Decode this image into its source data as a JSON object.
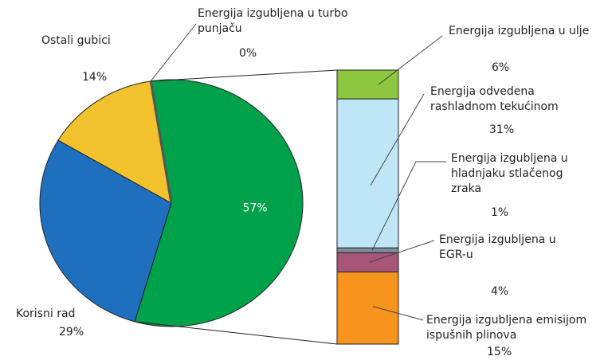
{
  "chart_data": {
    "type": "pie-of-bar",
    "pie": {
      "categories": [
        null,
        "Korisni rad",
        "Ostali gubici",
        "Energija izgubljena u turbo punjaču"
      ],
      "values": [
        57,
        29,
        14,
        0
      ],
      "value_labels": [
        "57%",
        "29%",
        "14%",
        "0%"
      ],
      "colors": [
        "#00a14b",
        "#1f6fbf",
        "#f2c12e",
        "#555555"
      ]
    },
    "bar": {
      "categories": [
        "Energija izgubljena u ulje",
        "Energija odvedena rashladnom tekućinom",
        "Energija izgubljena u hladnjaku stlačenog zraka",
        "Energija izgubljena u EGR-u",
        "Energija izgubljena emisijom ispušnih plinova"
      ],
      "values": [
        6,
        31,
        1,
        4,
        15
      ],
      "value_labels": [
        "6%",
        "31%",
        "1%",
        "4%",
        "15%"
      ],
      "colors": [
        "#8dc63f",
        "#bfe6f7",
        "#7f8c99",
        "#a8557a",
        "#f7941d"
      ]
    }
  }
}
